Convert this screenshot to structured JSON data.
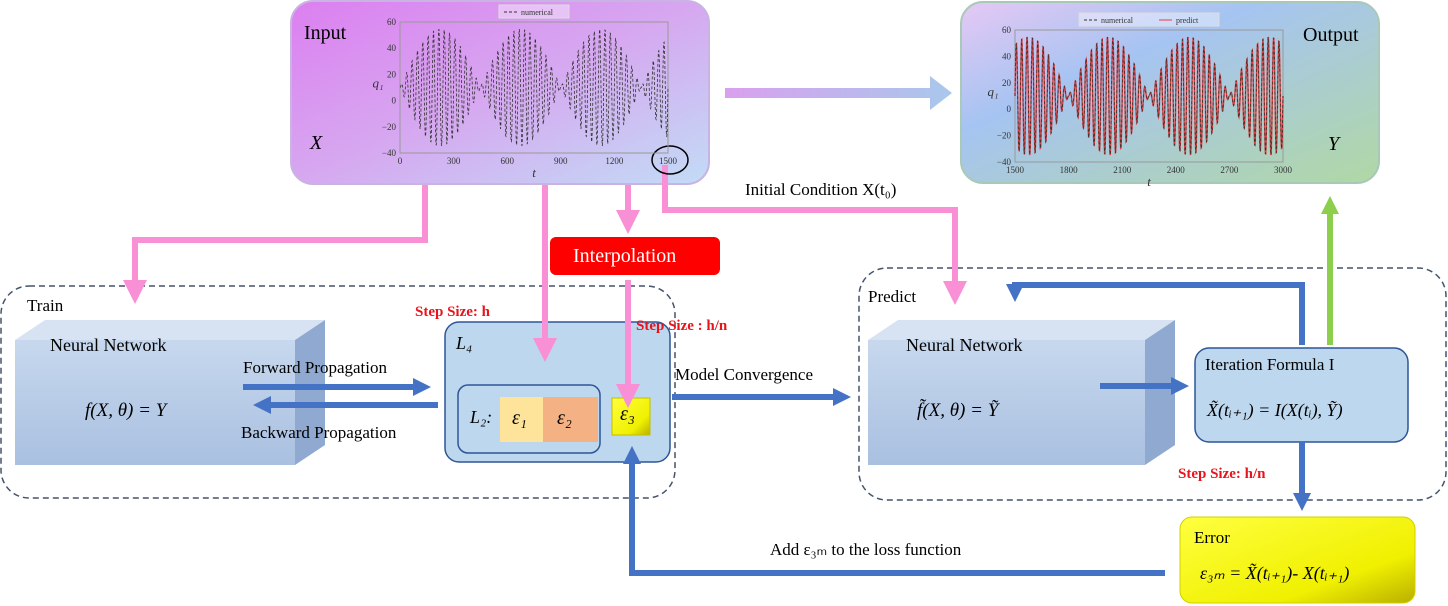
{
  "input": {
    "title": "Input",
    "var": "X",
    "ylabel": "q₁",
    "xlabel": "t",
    "legend": [
      "numerical"
    ],
    "xticks": [
      "0",
      "300",
      "600",
      "900",
      "1200",
      "1500"
    ],
    "yticks": [
      "60",
      "40",
      "20",
      "0",
      "−20",
      "−40"
    ],
    "xlim": [
      0,
      1500
    ],
    "ylim": [
      -40,
      60
    ]
  },
  "output": {
    "title": "Output",
    "var": "Y",
    "ylabel": "q₁",
    "xlabel": "t",
    "legend": [
      "numerical",
      "predict"
    ],
    "xticks": [
      "1500",
      "1800",
      "2100",
      "2400",
      "2700",
      "3000"
    ],
    "yticks": [
      "60",
      "40",
      "20",
      "0",
      "−20",
      "−40"
    ],
    "xlim": [
      1500,
      3000
    ],
    "ylim": [
      -40,
      60
    ]
  },
  "colors": {
    "pink": "#f98fd4",
    "blue": "#4472c4",
    "green": "#8ccf4d",
    "red": "#ff0000",
    "yellow": "#ffff00",
    "predict": "#e04040"
  },
  "interpolation": "Interpolation",
  "initial_condition": "Initial Condition X(t₀)",
  "train": {
    "label": "Train",
    "nn": "Neural Network",
    "formula": "f(X, θ) = Y",
    "step_h": "Step Size: h",
    "step_hn": "Step Size  : h/n",
    "forward": "Forward Propagation",
    "backward": "Backward Propagation",
    "l4": "L₄",
    "l2": "L₂:",
    "e1": "ε₁",
    "e2": "ε₂",
    "e3": "ε₃"
  },
  "model_convergence": "Model Convergence",
  "predict": {
    "label": "Predict",
    "nn": "Neural Network",
    "formula": "f̃(X, θ) = Ỹ",
    "iter_title": "Iteration Formula I",
    "iter_formula": "X̃(tᵢ₊₁) = I(X(tᵢ), Ỹ)",
    "step_hn": "Step Size: h/n"
  },
  "error": {
    "title": "Error",
    "formula": "ε₃ₘ = X̃(tᵢ₊₁)- X(tᵢ₊₁)"
  },
  "add_loss": "Add ε₃ₘ to the loss function"
}
